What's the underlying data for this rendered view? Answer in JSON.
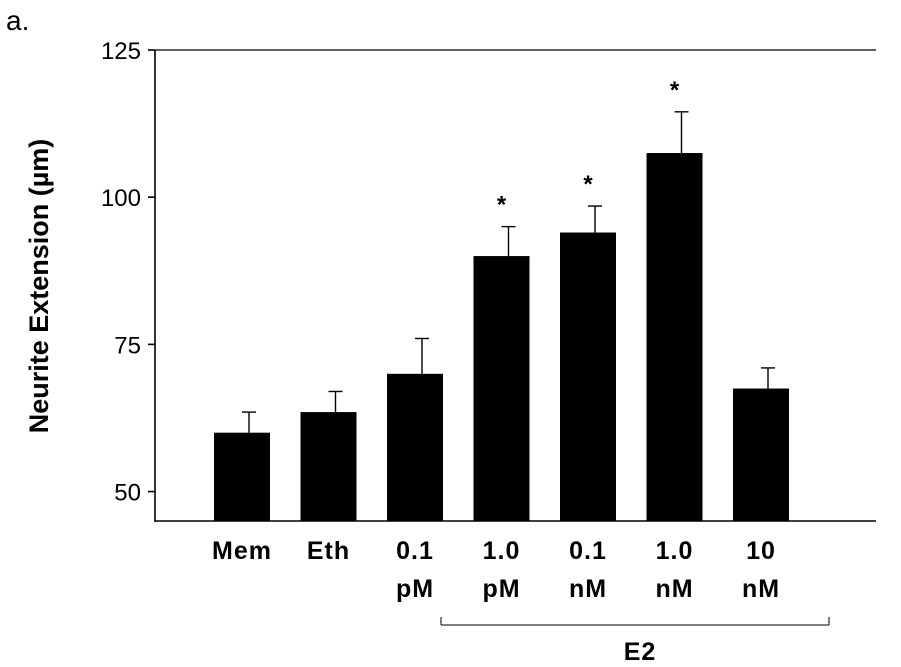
{
  "panel_label": "a.",
  "chart_data": {
    "type": "bar",
    "title": "",
    "xlabel": "",
    "ylabel": "Neurite Extension (µm)",
    "ylim": [
      45,
      125
    ],
    "yticks": [
      50,
      75,
      100,
      125
    ],
    "categories": [
      {
        "line1": "Mem",
        "line2": ""
      },
      {
        "line1": "Eth",
        "line2": ""
      },
      {
        "line1": "0.1",
        "line2": "pM"
      },
      {
        "line1": "1.0",
        "line2": "pM"
      },
      {
        "line1": "0.1",
        "line2": "nM"
      },
      {
        "line1": "1.0",
        "line2": "nM"
      },
      {
        "line1": "10",
        "line2": "nM"
      }
    ],
    "values": [
      60,
      63.5,
      70,
      90,
      94,
      107.5,
      67.5
    ],
    "errors": [
      3.5,
      3.5,
      6,
      5,
      4.5,
      7,
      3.5
    ],
    "significance": [
      "",
      "",
      "",
      "*",
      "*",
      "*",
      ""
    ],
    "group_label": "E2",
    "bar_color": "#000000",
    "grid": false
  }
}
